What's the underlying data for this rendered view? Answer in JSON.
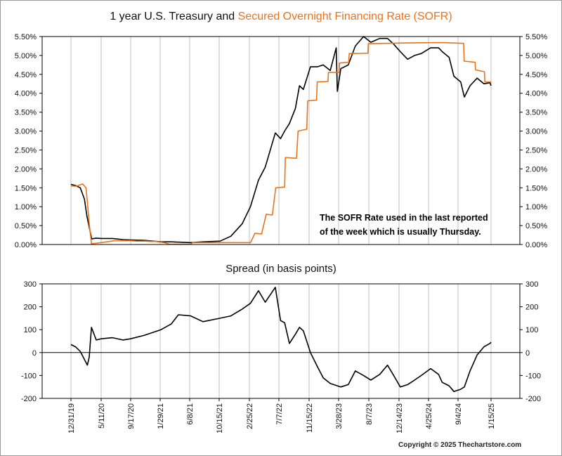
{
  "title": {
    "part1": "1 year U.S. Treasury and ",
    "part2": "Secured Overnight Financing Rate (SOFR)"
  },
  "note": {
    "line1": "The SOFR Rate used in the last reported",
    "line2": "of the week which is usually Thursday."
  },
  "copyright": "Copyright © 2025 Thechartstore.com",
  "colors": {
    "treasury": "#000000",
    "sofr": "#e8741e",
    "grid": "#c0c0c0"
  },
  "chart_data": [
    {
      "type": "line",
      "title": "1 year U.S. Treasury and Secured Overnight Financing Rate (SOFR)",
      "x_tick_labels": [
        "12/31/19",
        "5/11/20",
        "9/17/20",
        "1/29/21",
        "6/8/21",
        "10/15/21",
        "2/25/22",
        "7/7/22",
        "11/15/22",
        "3/28/23",
        "8/7/23",
        "12/14/23",
        "4/25/24",
        "9/4/24",
        "1/15/25"
      ],
      "y_tick_labels": [
        "0.00%",
        "0.50%",
        "1.00%",
        "1.50%",
        "2.00%",
        "2.50%",
        "3.00%",
        "3.50%",
        "4.00%",
        "4.50%",
        "5.00%",
        "5.50%"
      ],
      "ylim": [
        0,
        5.5
      ],
      "grid": true,
      "x_axis": "dates",
      "series": [
        {
          "name": "1 year U.S. Treasury",
          "color": "#000000",
          "points": [
            [
              "2019-12-31",
              1.59
            ],
            [
              "2020-01-20",
              1.56
            ],
            [
              "2020-02-10",
              1.5
            ],
            [
              "2020-02-28",
              1.2
            ],
            [
              "2020-03-10",
              0.75
            ],
            [
              "2020-03-31",
              0.15
            ],
            [
              "2020-04-20",
              0.17
            ],
            [
              "2020-05-11",
              0.16
            ],
            [
              "2020-06-30",
              0.16
            ],
            [
              "2020-08-15",
              0.13
            ],
            [
              "2020-09-17",
              0.12
            ],
            [
              "2020-11-15",
              0.11
            ],
            [
              "2021-01-29",
              0.07
            ],
            [
              "2021-03-15",
              0.07
            ],
            [
              "2021-06-08",
              0.05
            ],
            [
              "2021-08-01",
              0.07
            ],
            [
              "2021-10-15",
              0.09
            ],
            [
              "2021-12-01",
              0.22
            ],
            [
              "2022-01-20",
              0.55
            ],
            [
              "2022-02-25",
              1.0
            ],
            [
              "2022-04-01",
              1.7
            ],
            [
              "2022-05-01",
              2.05
            ],
            [
              "2022-06-14",
              2.95
            ],
            [
              "2022-07-07",
              2.8
            ],
            [
              "2022-07-25",
              3.0
            ],
            [
              "2022-08-15",
              3.2
            ],
            [
              "2022-09-10",
              3.6
            ],
            [
              "2022-09-28",
              4.2
            ],
            [
              "2022-10-15",
              4.1
            ],
            [
              "2022-11-15",
              4.7
            ],
            [
              "2022-12-15",
              4.7
            ],
            [
              "2023-01-10",
              4.75
            ],
            [
              "2023-02-10",
              4.6
            ],
            [
              "2023-03-08",
              5.2
            ],
            [
              "2023-03-13",
              4.05
            ],
            [
              "2023-03-28",
              4.65
            ],
            [
              "2023-04-30",
              4.75
            ],
            [
              "2023-05-31",
              5.25
            ],
            [
              "2023-07-06",
              5.5
            ],
            [
              "2023-08-07",
              5.35
            ],
            [
              "2023-09-15",
              5.45
            ],
            [
              "2023-10-19",
              5.45
            ],
            [
              "2023-11-15",
              5.3
            ],
            [
              "2023-12-14",
              5.1
            ],
            [
              "2024-01-15",
              4.9
            ],
            [
              "2024-02-15",
              5.0
            ],
            [
              "2024-03-15",
              5.05
            ],
            [
              "2024-04-25",
              5.2
            ],
            [
              "2024-05-30",
              5.2
            ],
            [
              "2024-06-15",
              5.1
            ],
            [
              "2024-07-15",
              4.95
            ],
            [
              "2024-08-05",
              4.45
            ],
            [
              "2024-09-04",
              4.3
            ],
            [
              "2024-09-20",
              3.9
            ],
            [
              "2024-10-15",
              4.2
            ],
            [
              "2024-11-15",
              4.4
            ],
            [
              "2024-12-15",
              4.25
            ],
            [
              "2025-01-10",
              4.28
            ],
            [
              "2025-01-15",
              4.2
            ]
          ]
        },
        {
          "name": "Secured Overnight Financing Rate (SOFR)",
          "color": "#e8741e",
          "points": [
            [
              "2019-12-31",
              1.55
            ],
            [
              "2020-01-20",
              1.54
            ],
            [
              "2020-02-05",
              1.57
            ],
            [
              "2020-02-20",
              1.6
            ],
            [
              "2020-03-06",
              1.5
            ],
            [
              "2020-03-12",
              1.12
            ],
            [
              "2020-03-20",
              0.55
            ],
            [
              "2020-03-30",
              0.02
            ],
            [
              "2020-04-14",
              0.03
            ],
            [
              "2020-05-11",
              0.05
            ],
            [
              "2020-06-15",
              0.08
            ],
            [
              "2020-07-10",
              0.1
            ],
            [
              "2020-08-15",
              0.1
            ],
            [
              "2020-09-17",
              0.1
            ],
            [
              "2020-10-15",
              0.09
            ],
            [
              "2020-11-20",
              0.09
            ],
            [
              "2020-12-15",
              0.08
            ],
            [
              "2021-01-05",
              0.08
            ],
            [
              "2021-02-10",
              0.05
            ],
            [
              "2021-03-08",
              0.01
            ],
            [
              "2021-06-08",
              0.01
            ],
            [
              "2021-06-17",
              0.05
            ],
            [
              "2021-10-15",
              0.05
            ],
            [
              "2022-02-25",
              0.05
            ],
            [
              "2022-03-17",
              0.3
            ],
            [
              "2022-04-15",
              0.28
            ],
            [
              "2022-05-05",
              0.8
            ],
            [
              "2022-06-01",
              0.78
            ],
            [
              "2022-06-16",
              1.5
            ],
            [
              "2022-07-25",
              1.52
            ],
            [
              "2022-07-28",
              2.3
            ],
            [
              "2022-09-15",
              2.28
            ],
            [
              "2022-09-22",
              3.0
            ],
            [
              "2022-10-30",
              3.05
            ],
            [
              "2022-11-03",
              3.8
            ],
            [
              "2022-12-12",
              3.82
            ],
            [
              "2022-12-15",
              4.3
            ],
            [
              "2023-01-31",
              4.31
            ],
            [
              "2023-02-02",
              4.55
            ],
            [
              "2023-03-21",
              4.55
            ],
            [
              "2023-03-23",
              4.8
            ],
            [
              "2023-05-02",
              4.82
            ],
            [
              "2023-05-04",
              5.05
            ],
            [
              "2023-07-25",
              5.06
            ],
            [
              "2023-07-27",
              5.31
            ],
            [
              "2024-01-15",
              5.33
            ],
            [
              "2024-06-15",
              5.34
            ],
            [
              "2024-09-17",
              5.32
            ],
            [
              "2024-09-19",
              4.85
            ],
            [
              "2024-11-06",
              4.82
            ],
            [
              "2024-11-08",
              4.62
            ],
            [
              "2024-12-17",
              4.57
            ],
            [
              "2024-12-19",
              4.3
            ],
            [
              "2025-01-15",
              4.3
            ]
          ]
        }
      ]
    },
    {
      "type": "line",
      "title": "Spread (in basis points)",
      "x_tick_labels": [
        "12/31/19",
        "5/11/20",
        "9/17/20",
        "1/29/21",
        "6/8/21",
        "10/15/21",
        "2/25/22",
        "7/7/22",
        "11/15/22",
        "3/28/23",
        "8/7/23",
        "12/14/23",
        "4/25/24",
        "9/4/24",
        "1/15/25"
      ],
      "y_tick_labels": [
        "-200",
        "-100",
        "0",
        "100",
        "200",
        "300"
      ],
      "ylim": [
        -200,
        300
      ],
      "grid": true,
      "x_axis": "dates",
      "series": [
        {
          "name": "Spread",
          "color": "#000000",
          "points": [
            [
              "2019-12-31",
              35
            ],
            [
              "2020-01-20",
              25
            ],
            [
              "2020-02-10",
              5
            ],
            [
              "2020-02-28",
              -30
            ],
            [
              "2020-03-12",
              -55
            ],
            [
              "2020-03-20",
              -20
            ],
            [
              "2020-03-30",
              110
            ],
            [
              "2020-04-20",
              55
            ],
            [
              "2020-05-11",
              60
            ],
            [
              "2020-06-30",
              65
            ],
            [
              "2020-08-15",
              55
            ],
            [
              "2020-09-17",
              60
            ],
            [
              "2020-11-15",
              75
            ],
            [
              "2021-01-29",
              100
            ],
            [
              "2021-03-15",
              125
            ],
            [
              "2021-04-15",
              165
            ],
            [
              "2021-06-08",
              160
            ],
            [
              "2021-08-01",
              135
            ],
            [
              "2021-10-15",
              150
            ],
            [
              "2021-12-01",
              160
            ],
            [
              "2022-01-20",
              190
            ],
            [
              "2022-02-25",
              215
            ],
            [
              "2022-04-01",
              270
            ],
            [
              "2022-05-01",
              220
            ],
            [
              "2022-06-14",
              285
            ],
            [
              "2022-07-07",
              140
            ],
            [
              "2022-07-25",
              130
            ],
            [
              "2022-08-15",
              40
            ],
            [
              "2022-09-10",
              80
            ],
            [
              "2022-09-28",
              110
            ],
            [
              "2022-10-15",
              95
            ],
            [
              "2022-11-15",
              0
            ],
            [
              "2022-12-15",
              -60
            ],
            [
              "2023-01-10",
              -110
            ],
            [
              "2023-02-10",
              -135
            ],
            [
              "2023-03-28",
              -150
            ],
            [
              "2023-04-30",
              -140
            ],
            [
              "2023-05-31",
              -80
            ],
            [
              "2023-07-06",
              -100
            ],
            [
              "2023-08-07",
              -120
            ],
            [
              "2023-09-15",
              -95
            ],
            [
              "2023-10-19",
              -55
            ],
            [
              "2023-11-15",
              -100
            ],
            [
              "2023-12-14",
              -150
            ],
            [
              "2024-01-15",
              -140
            ],
            [
              "2024-02-15",
              -120
            ],
            [
              "2024-03-15",
              -100
            ],
            [
              "2024-04-25",
              -70
            ],
            [
              "2024-05-30",
              -95
            ],
            [
              "2024-06-15",
              -130
            ],
            [
              "2024-07-15",
              -145
            ],
            [
              "2024-08-05",
              -170
            ],
            [
              "2024-09-04",
              -160
            ],
            [
              "2024-09-20",
              -150
            ],
            [
              "2024-10-15",
              -80
            ],
            [
              "2024-11-15",
              -10
            ],
            [
              "2024-12-15",
              25
            ],
            [
              "2025-01-10",
              40
            ],
            [
              "2025-01-15",
              45
            ]
          ]
        }
      ]
    }
  ]
}
